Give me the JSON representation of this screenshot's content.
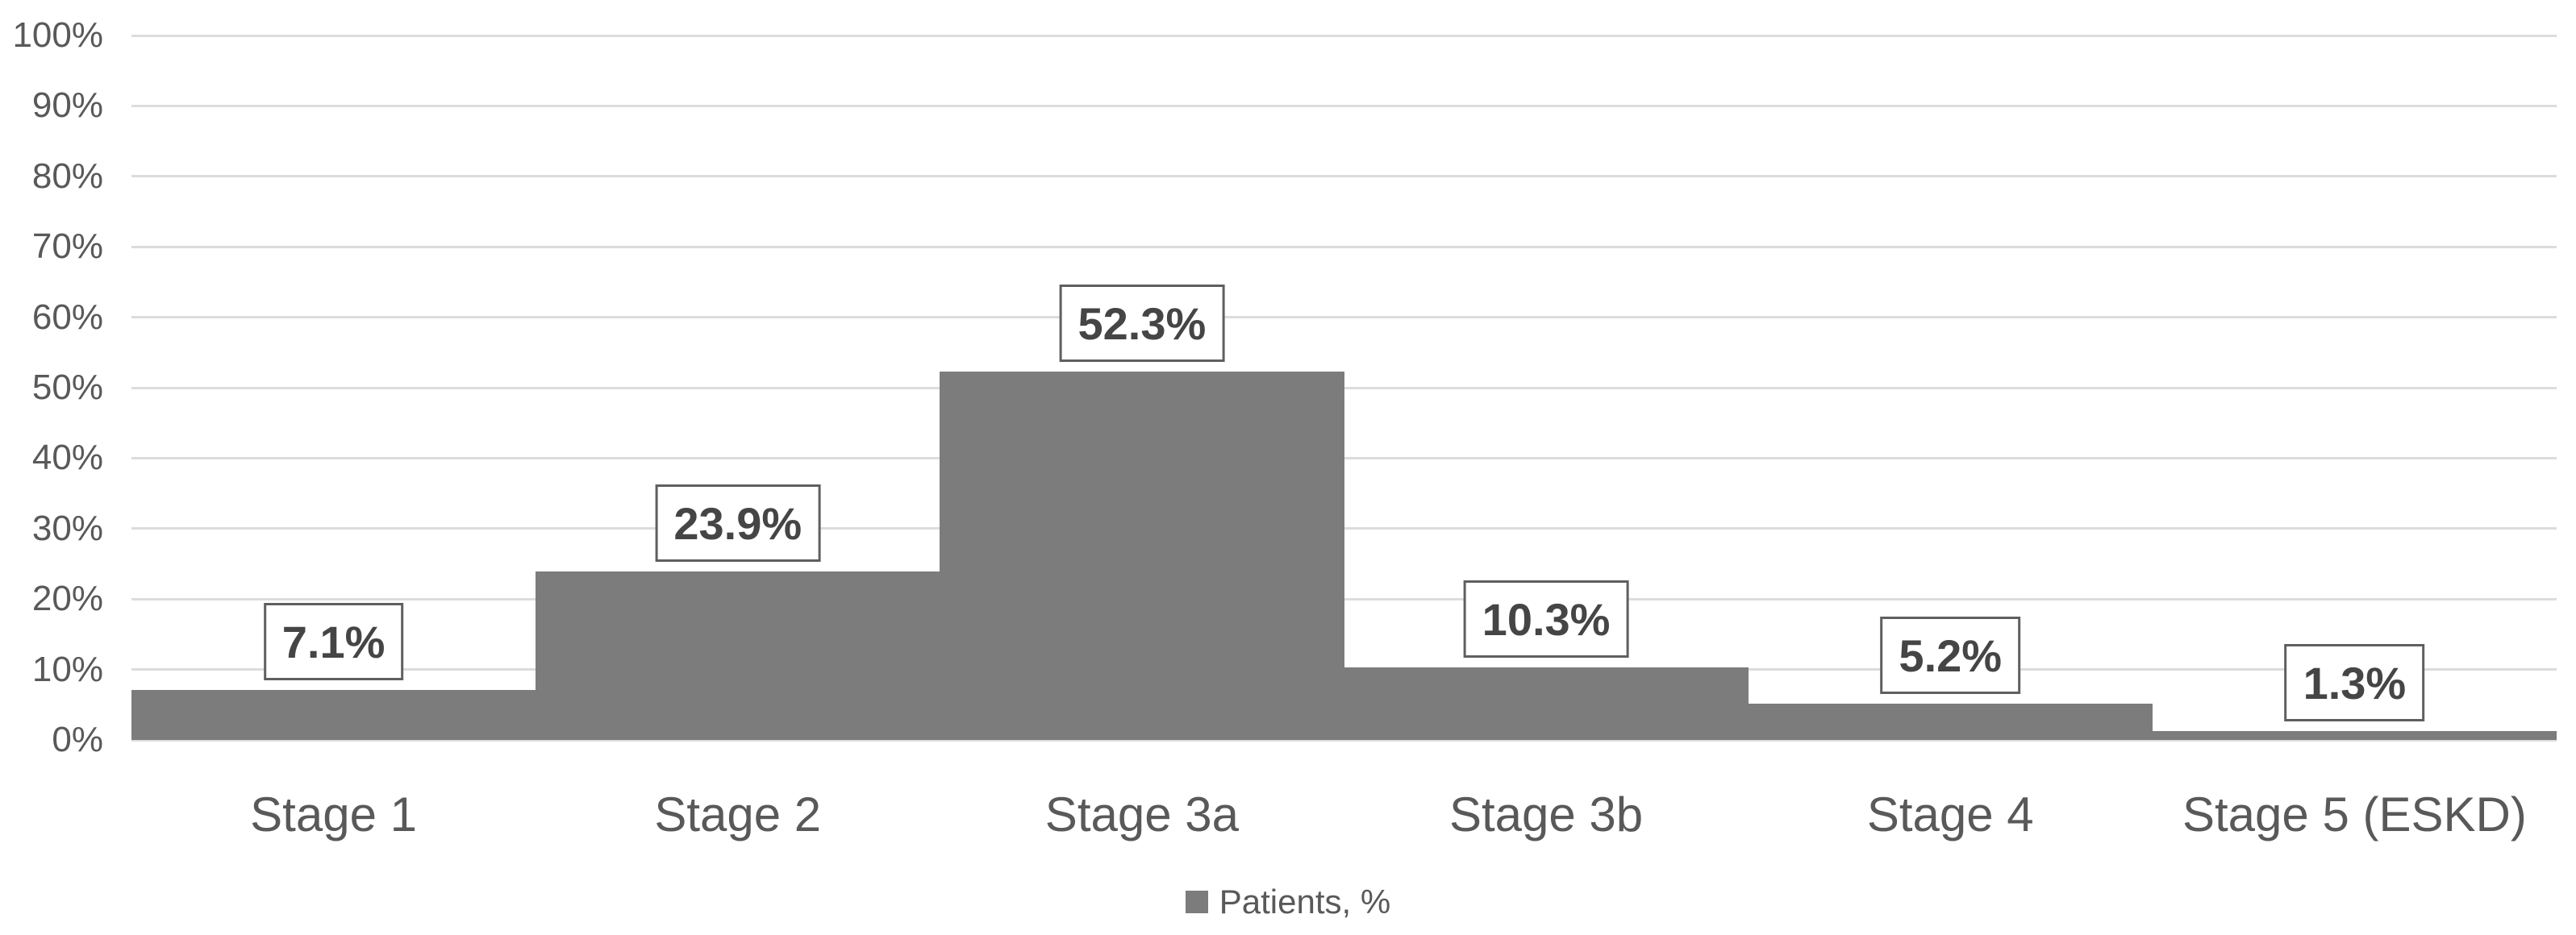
{
  "chart_data": {
    "type": "bar",
    "title": "",
    "xlabel": "",
    "ylabel": "",
    "categories": [
      "Stage 1",
      "Stage 2",
      "Stage 3a",
      "Stage 3b",
      "Stage 4",
      "Stage 5 (ESKD)"
    ],
    "series": [
      {
        "name": "Patients, %",
        "values": [
          7.1,
          23.9,
          52.3,
          10.3,
          5.2,
          1.3
        ],
        "data_labels": [
          "7.1%",
          "23.9%",
          "52.3%",
          "10.3%",
          "5.2%",
          "1.3%"
        ]
      }
    ],
    "ylim": [
      0,
      100
    ],
    "y_tick_step": 10,
    "y_tick_labels": [
      "0%",
      "10%",
      "20%",
      "30%",
      "40%",
      "50%",
      "60%",
      "70%",
      "80%",
      "90%",
      "100%"
    ],
    "grid": true,
    "bar_gap": "none",
    "legend_position": "bottom",
    "colors": {
      "bar_fill": "#7c7c7c",
      "gridline": "#dcdcdc",
      "axis_text": "#595959",
      "data_label_text": "#454545",
      "data_label_border": "#5f5f5f",
      "background": "#ffffff"
    }
  },
  "legend": {
    "label": "Patients, %",
    "swatch_color": "#7c7c7c"
  }
}
